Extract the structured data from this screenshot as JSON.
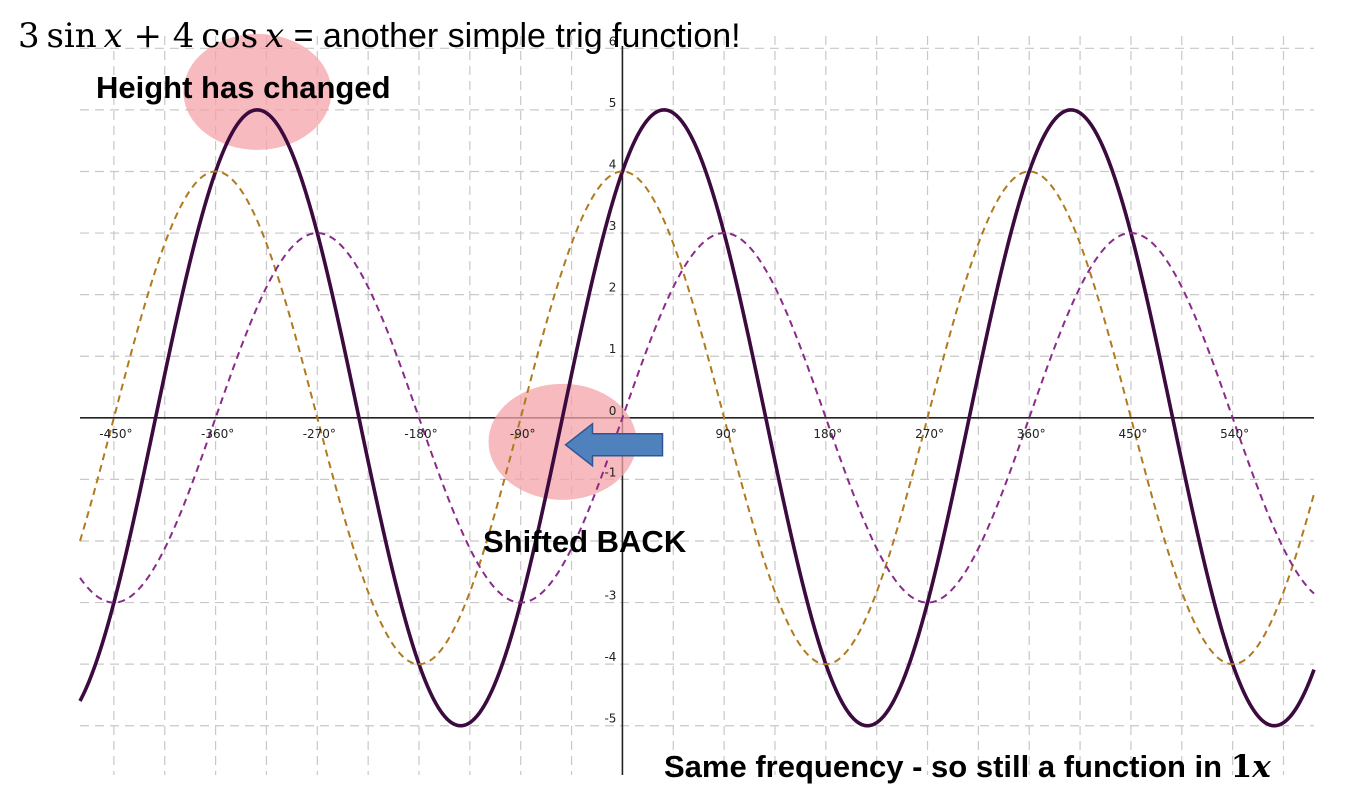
{
  "title": {
    "expr_a": "3",
    "fn_a": "sin",
    "var_a": "x",
    "op": "+",
    "expr_b": "4",
    "fn_b": "cos",
    "var_b": "x",
    "rest": " = another simple trig function!"
  },
  "annotations": {
    "height": "Height has changed",
    "shift": "Shifted BACK",
    "freq_text": "Same frequency - so still a function in ",
    "freq_num": "1",
    "freq_var": "x"
  },
  "colors": {
    "combined": "#3b0a3f",
    "cos_dashed": "#b07a1e",
    "sin_dashed": "#8a2a8a",
    "highlight": "#f4a3a8",
    "arrow": "#4f81bd",
    "arrow_border": "#2f5597",
    "grid": "#c8c8c8",
    "axis": "#222222"
  },
  "chart_data": {
    "type": "line",
    "x_unit": "degrees",
    "xlim": [
      -480,
      612
    ],
    "ylim": [
      -5.8,
      6.2
    ],
    "x_ticks": [
      -450,
      -360,
      -270,
      -180,
      -90,
      90,
      180,
      270,
      360,
      450,
      540
    ],
    "x_tick_labels": [
      "-450°",
      "-360°",
      "-270°",
      "-180°",
      "-90°",
      "90°",
      "180°",
      "270°",
      "360°",
      "450°",
      "540°"
    ],
    "y_ticks": [
      -5,
      -4,
      -3,
      -1,
      0,
      1,
      2,
      3,
      4,
      5,
      6
    ],
    "y_tick_labels": [
      "-5",
      "-4",
      "-3",
      "-1",
      "0",
      "1",
      "2",
      "3",
      "4",
      "5",
      "6"
    ],
    "grid": true,
    "series": [
      {
        "function": "3 sin x + 4 cos x",
        "amplitude": 5,
        "phase_shift_deg": -53.13,
        "style": "solid"
      },
      {
        "function": "4 cos x",
        "amplitude": 4,
        "style": "dashed"
      },
      {
        "function": "3 sin x",
        "amplitude": 3,
        "style": "dashed"
      }
    ],
    "highlights": [
      {
        "label": "peak",
        "x": -323,
        "y": 5
      },
      {
        "label": "zero-crossing",
        "x": -53,
        "y": 0
      }
    ]
  }
}
